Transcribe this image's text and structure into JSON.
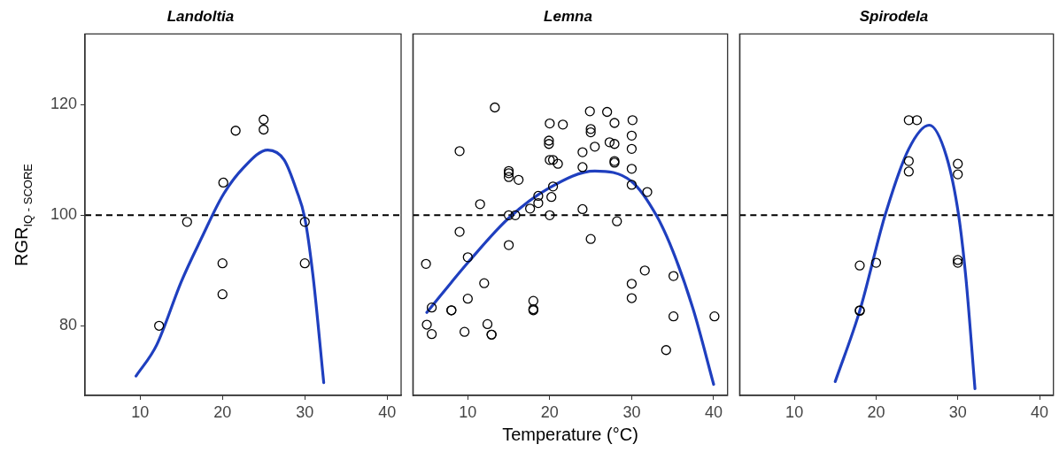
{
  "chart_data": [
    {
      "type": "scatter",
      "title": "Landoltia",
      "ylabel": "RGR$_{IQ - SCORE}$",
      "xlim": [
        3.3,
        41.7
      ],
      "ylim": [
        67.4,
        132.8
      ],
      "xticks": [
        10,
        20,
        30,
        40
      ],
      "yticks": [
        80,
        100,
        120
      ],
      "ref_lines": [
        {
          "axis": "y",
          "value": 100,
          "color": "#000000",
          "line_style": "dashed"
        }
      ],
      "series": [
        {
          "type": "scatter",
          "marker": "circle",
          "color": "#000000",
          "x": [
            12.3,
            15.7,
            20.1,
            20,
            20,
            21.6,
            25,
            25,
            30,
            30
          ],
          "values": [
            80.0,
            98.8,
            105.9,
            91.3,
            85.7,
            115.3,
            117.3,
            115.5,
            98.8,
            91.3
          ]
        },
        {
          "type": "line",
          "color": "#1f3fbf",
          "x": [
            9.5,
            12,
            15,
            17.5,
            20,
            22.5,
            25.5,
            27.5,
            29,
            30,
            31,
            32.3
          ],
          "values": [
            70.9,
            76.5,
            88,
            96,
            103.5,
            108.5,
            111.8,
            110,
            104.5,
            99.5,
            89,
            69.7
          ]
        }
      ]
    },
    {
      "type": "scatter",
      "title": "Lemna",
      "xlabel": "Temperature (°C)",
      "xlim": [
        3.3,
        41.7
      ],
      "ylim": [
        67.4,
        132.8
      ],
      "xticks": [
        10,
        20,
        30,
        40
      ],
      "yticks": [
        80,
        100,
        120
      ],
      "tick_labels": "x",
      "ref_lines": [
        {
          "axis": "y",
          "value": 100,
          "color": "#000000",
          "line_style": "dashed"
        }
      ],
      "series": [
        {
          "type": "scatter",
          "marker": "circle",
          "color": "#000000",
          "x": [
            13.3,
            9,
            15,
            15,
            15,
            16.2,
            20,
            21.6,
            19.9,
            19.9,
            20,
            20.4,
            21,
            24,
            24,
            24.9,
            25,
            25,
            25.5,
            27,
            27.9,
            27.3,
            27.9,
            27.9,
            27.9,
            30.1,
            30,
            30,
            30,
            30,
            31.9,
            20.4,
            20.2,
            18.6,
            18.6,
            17.6,
            15,
            15.8,
            20,
            24,
            28.2,
            11.5,
            9,
            15,
            25,
            4.9,
            10,
            31.6,
            35.1,
            30,
            30,
            12,
            10,
            5.6,
            8,
            8,
            18,
            18,
            18,
            5,
            5.6,
            9.6,
            12.4,
            12.9,
            12.9,
            35.1,
            40.1,
            34.2
          ],
          "values": [
            119.5,
            111.6,
            108.0,
            107.6,
            106.9,
            106.4,
            116.6,
            116.4,
            113.5,
            112.9,
            110.0,
            110.0,
            109.3,
            111.4,
            108.7,
            118.8,
            115.6,
            115.0,
            112.4,
            118.7,
            116.7,
            113.2,
            112.9,
            109.8,
            109.5,
            117.2,
            114.4,
            112.0,
            108.4,
            105.5,
            104.2,
            105.2,
            103.3,
            103.5,
            102.2,
            101.2,
            100.0,
            100.0,
            100.0,
            101.1,
            98.9,
            102.0,
            97.0,
            94.6,
            95.7,
            91.2,
            92.4,
            90.0,
            89.0,
            87.6,
            85.0,
            87.7,
            84.9,
            83.3,
            82.8,
            82.8,
            84.5,
            83.0,
            82.8,
            80.2,
            78.5,
            78.9,
            80.3,
            78.4,
            78.4,
            81.7,
            81.7,
            75.6
          ]
        },
        {
          "type": "line",
          "color": "#1f3fbf",
          "x": [
            5,
            10,
            15,
            20,
            25.5,
            30,
            33,
            35,
            37.5,
            40
          ],
          "values": [
            82.4,
            91.4,
            99.5,
            105,
            108,
            106.1,
            100,
            93.6,
            83,
            69.4
          ]
        }
      ]
    },
    {
      "type": "scatter",
      "title": "Spirodela",
      "xlim": [
        3.3,
        41.7
      ],
      "ylim": [
        67.4,
        132.8
      ],
      "xticks": [
        10,
        20,
        30,
        40
      ],
      "yticks": [
        80,
        100,
        120
      ],
      "tick_labels": "x",
      "ref_lines": [
        {
          "axis": "y",
          "value": 100,
          "color": "#000000",
          "line_style": "dashed"
        }
      ],
      "series": [
        {
          "type": "scatter",
          "marker": "circle",
          "color": "#000000",
          "x": [
            24,
            25,
            24,
            24,
            30,
            30,
            18,
            20,
            30,
            30,
            18,
            18
          ],
          "values": [
            117.2,
            117.2,
            109.8,
            107.9,
            109.3,
            107.4,
            90.9,
            91.4,
            91.9,
            91.4,
            82.8,
            82.7
          ]
        },
        {
          "type": "line",
          "color": "#1f3fbf",
          "x": [
            15,
            18,
            21.1,
            24,
            26.5,
            28.6,
            30.1,
            31,
            32.1
          ],
          "values": [
            69.9,
            82.7,
            100,
            112,
            116.3,
            110.7,
            100,
            88.5,
            68.6
          ]
        }
      ]
    }
  ]
}
